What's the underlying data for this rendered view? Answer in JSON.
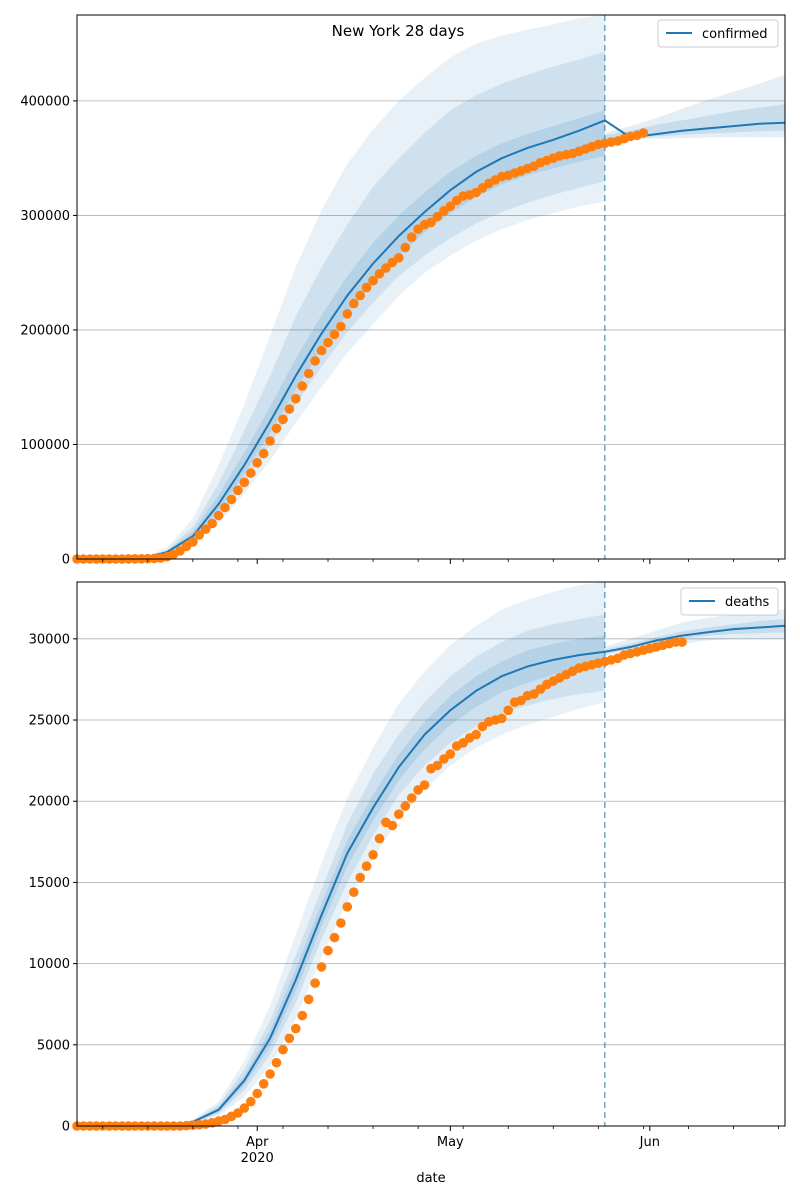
{
  "figure": {
    "title": "New York 28 days",
    "xlabel": "date",
    "x_ticks": [
      {
        "date": "2020-04-01",
        "label": "Apr"
      },
      {
        "date": "2020-05-01",
        "label": "May"
      },
      {
        "date": "2020-06-01",
        "label": "Jun"
      }
    ],
    "x_year_label": "2020",
    "colors": {
      "model": "#1f77b4",
      "observed": "#ff7f0e",
      "band": "#1f77b4",
      "grid": "#b0b0b0",
      "axis": "#000000"
    }
  },
  "chart_data": [
    {
      "type": "line",
      "panel": "top",
      "title": "New York 28 days",
      "legend": {
        "entries": [
          "confirmed"
        ],
        "placement": "top-right"
      },
      "xlim": [
        "2020-03-04",
        "2020-06-22"
      ],
      "ylim": [
        0,
        475000
      ],
      "y_ticks": [
        0,
        100000,
        200000,
        300000,
        400000
      ],
      "y_tick_labels": [
        "0",
        "100000",
        "200000",
        "300000",
        "400000"
      ],
      "grid": "horizontal",
      "forecast_start": "2020-05-25",
      "model_line": {
        "name": "confirmed",
        "x": [
          "2020-03-04",
          "2020-03-14",
          "2020-03-18",
          "2020-03-22",
          "2020-03-26",
          "2020-03-30",
          "2020-04-03",
          "2020-04-07",
          "2020-04-11",
          "2020-04-15",
          "2020-04-19",
          "2020-04-23",
          "2020-04-27",
          "2020-05-01",
          "2020-05-05",
          "2020-05-09",
          "2020-05-13",
          "2020-05-17",
          "2020-05-21",
          "2020-05-25",
          "2020-05-29",
          "2020-06-02",
          "2020-06-06",
          "2020-06-10",
          "2020-06-14",
          "2020-06-18",
          "2020-06-22"
        ],
        "y": [
          0,
          300,
          6000,
          20000,
          48000,
          82000,
          120000,
          160000,
          197000,
          230000,
          258000,
          282000,
          303000,
          322000,
          338000,
          350000,
          359000,
          366000,
          374000,
          383000,
          368000,
          371000,
          374000,
          376000,
          378000,
          380000,
          381000
        ]
      },
      "bands": [
        {
          "level": "outer",
          "x": [
            "2020-03-14",
            "2020-03-18",
            "2020-03-22",
            "2020-03-26",
            "2020-03-30",
            "2020-04-03",
            "2020-04-07",
            "2020-04-11",
            "2020-04-15",
            "2020-04-19",
            "2020-04-23",
            "2020-04-27",
            "2020-05-01",
            "2020-05-05",
            "2020-05-09",
            "2020-05-13",
            "2020-05-17",
            "2020-05-21",
            "2020-05-25"
          ],
          "lower": [
            200,
            4000,
            13000,
            31000,
            57000,
            86000,
            119000,
            150000,
            180000,
            205000,
            230000,
            250000,
            265000,
            278000,
            288000,
            296000,
            302000,
            308000,
            312000
          ],
          "upper": [
            400,
            10000,
            35000,
            82000,
            135000,
            195000,
            255000,
            305000,
            345000,
            375000,
            400000,
            420000,
            438000,
            450000,
            457000,
            462000,
            467000,
            472000,
            475000
          ]
        },
        {
          "level": "middle",
          "x": [
            "2020-03-14",
            "2020-03-18",
            "2020-03-22",
            "2020-03-26",
            "2020-03-30",
            "2020-04-03",
            "2020-04-07",
            "2020-04-11",
            "2020-04-15",
            "2020-04-19",
            "2020-04-23",
            "2020-04-27",
            "2020-05-01",
            "2020-05-05",
            "2020-05-09",
            "2020-05-13",
            "2020-05-17",
            "2020-05-21",
            "2020-05-25"
          ],
          "lower": [
            250,
            5000,
            15000,
            37000,
            66000,
            100000,
            135000,
            168000,
            198000,
            224000,
            247000,
            265000,
            280000,
            293000,
            303000,
            311000,
            318000,
            324000,
            330000
          ],
          "upper": [
            350,
            8000,
            28000,
            66000,
            112000,
            160000,
            212000,
            255000,
            292000,
            325000,
            350000,
            372000,
            392000,
            405000,
            415000,
            423000,
            430000,
            436000,
            443000
          ]
        },
        {
          "level": "inner",
          "x": [
            "2020-03-14",
            "2020-03-18",
            "2020-03-22",
            "2020-03-26",
            "2020-03-30",
            "2020-04-03",
            "2020-04-07",
            "2020-04-11",
            "2020-04-15",
            "2020-04-19",
            "2020-04-23",
            "2020-04-27",
            "2020-05-01",
            "2020-05-05",
            "2020-05-09",
            "2020-05-13",
            "2020-05-17",
            "2020-05-21",
            "2020-05-25"
          ],
          "lower": [
            270,
            5500,
            17000,
            42000,
            74000,
            110000,
            148000,
            183000,
            214000,
            241000,
            265000,
            285000,
            302000,
            316000,
            327000,
            335000,
            341000,
            347000,
            352000
          ],
          "upper": [
            330,
            7000,
            24000,
            56000,
            93000,
            133000,
            175000,
            213000,
            247000,
            276000,
            300000,
            320000,
            338000,
            352000,
            363000,
            371000,
            378000,
            385000,
            392000
          ]
        },
        {
          "level": "forecast-outer",
          "x": [
            "2020-05-25",
            "2020-05-29",
            "2020-06-02",
            "2020-06-06",
            "2020-06-10",
            "2020-06-14",
            "2020-06-18",
            "2020-06-22"
          ],
          "lower": [
            365000,
            366000,
            367000,
            367500,
            368000,
            368000,
            368000,
            368000
          ],
          "upper": [
            372000,
            378000,
            385000,
            393000,
            401000,
            408000,
            415000,
            423000
          ]
        },
        {
          "level": "forecast-inner",
          "x": [
            "2020-05-25",
            "2020-05-29",
            "2020-06-02",
            "2020-06-06",
            "2020-06-10",
            "2020-06-14",
            "2020-06-18",
            "2020-06-22"
          ],
          "lower": [
            366000,
            367500,
            369000,
            370500,
            371500,
            372500,
            373500,
            374000
          ],
          "upper": [
            370000,
            374000,
            379000,
            383000,
            387000,
            391000,
            394000,
            397000
          ]
        }
      ],
      "observed": {
        "start": "2020-03-01",
        "y": [
          0,
          0,
          0,
          0,
          0,
          0,
          0,
          0,
          0,
          0,
          0,
          100,
          150,
          200,
          300,
          500,
          900,
          2000,
          4000,
          7000,
          11000,
          15000,
          21000,
          26000,
          31000,
          38000,
          45000,
          52000,
          60000,
          67000,
          75000,
          84000,
          92000,
          103000,
          114000,
          122000,
          131000,
          140000,
          151000,
          162000,
          173000,
          182000,
          189000,
          196000,
          203000,
          214000,
          223000,
          230000,
          237000,
          243000,
          249000,
          254000,
          259000,
          263000,
          272000,
          281000,
          288000,
          292000,
          294000,
          299000,
          304000,
          308000,
          313000,
          317000,
          318000,
          320000,
          324000,
          328000,
          331000,
          334000,
          335000,
          337000,
          339000,
          341000,
          343000,
          346000,
          348000,
          350000,
          352000,
          353000,
          354000,
          356000,
          358000,
          360000,
          362000,
          363000,
          364000,
          365000,
          367000,
          369000,
          370000,
          372000
        ]
      }
    },
    {
      "type": "line",
      "panel": "bottom",
      "legend": {
        "entries": [
          "deaths"
        ],
        "placement": "top-right"
      },
      "xlim": [
        "2020-03-04",
        "2020-06-22"
      ],
      "ylim": [
        0,
        33500
      ],
      "y_ticks": [
        0,
        5000,
        10000,
        15000,
        20000,
        25000,
        30000
      ],
      "y_tick_labels": [
        "0",
        "5000",
        "10000",
        "15000",
        "20000",
        "25000",
        "30000"
      ],
      "grid": "horizontal",
      "forecast_start": "2020-05-25",
      "model_line": {
        "name": "deaths",
        "x": [
          "2020-03-04",
          "2020-03-18",
          "2020-03-22",
          "2020-03-26",
          "2020-03-30",
          "2020-04-03",
          "2020-04-07",
          "2020-04-11",
          "2020-04-15",
          "2020-04-19",
          "2020-04-23",
          "2020-04-27",
          "2020-05-01",
          "2020-05-05",
          "2020-05-09",
          "2020-05-13",
          "2020-05-17",
          "2020-05-21",
          "2020-05-25",
          "2020-05-29",
          "2020-06-02",
          "2020-06-06",
          "2020-06-10",
          "2020-06-14",
          "2020-06-18",
          "2020-06-22"
        ],
        "y": [
          0,
          0,
          250,
          1000,
          2800,
          5400,
          9000,
          13000,
          16800,
          19600,
          22100,
          24100,
          25600,
          26800,
          27700,
          28300,
          28700,
          29000,
          29200,
          29500,
          29900,
          30200,
          30400,
          30600,
          30700,
          30800
        ]
      },
      "bands": [
        {
          "level": "outer",
          "x": [
            "2020-03-18",
            "2020-03-22",
            "2020-03-26",
            "2020-03-30",
            "2020-04-03",
            "2020-04-07",
            "2020-04-11",
            "2020-04-15",
            "2020-04-19",
            "2020-04-23",
            "2020-04-27",
            "2020-05-01",
            "2020-05-05",
            "2020-05-09",
            "2020-05-13",
            "2020-05-17",
            "2020-05-21",
            "2020-05-25"
          ],
          "lower": [
            0,
            150,
            600,
            1800,
            3700,
            6600,
            10400,
            13800,
            16500,
            18900,
            20700,
            22200,
            23300,
            24100,
            24700,
            25200,
            25700,
            26100
          ],
          "upper": [
            0,
            400,
            1500,
            4000,
            7400,
            11800,
            16200,
            20200,
            23300,
            26000,
            28000,
            29600,
            30800,
            31800,
            32400,
            32900,
            33300,
            33500
          ]
        },
        {
          "level": "middle",
          "x": [
            "2020-03-18",
            "2020-03-22",
            "2020-03-26",
            "2020-03-30",
            "2020-04-03",
            "2020-04-07",
            "2020-04-11",
            "2020-04-15",
            "2020-04-19",
            "2020-04-23",
            "2020-04-27",
            "2020-05-01",
            "2020-05-05",
            "2020-05-09",
            "2020-05-13",
            "2020-05-17",
            "2020-05-21",
            "2020-05-25"
          ],
          "lower": [
            0,
            180,
            750,
            2200,
            4400,
            7600,
            11500,
            15000,
            17900,
            20400,
            22200,
            23600,
            24600,
            25400,
            25900,
            26300,
            26600,
            26800
          ],
          "upper": [
            0,
            330,
            1300,
            3500,
            6500,
            10500,
            14600,
            18600,
            21700,
            24100,
            26100,
            27700,
            28900,
            29800,
            30500,
            30900,
            31200,
            31500
          ]
        },
        {
          "level": "inner",
          "x": [
            "2020-03-18",
            "2020-03-22",
            "2020-03-26",
            "2020-03-30",
            "2020-04-03",
            "2020-04-07",
            "2020-04-11",
            "2020-04-15",
            "2020-04-19",
            "2020-04-23",
            "2020-04-27",
            "2020-05-01",
            "2020-05-05",
            "2020-05-09",
            "2020-05-13",
            "2020-05-17",
            "2020-05-21",
            "2020-05-25"
          ],
          "lower": [
            0,
            210,
            850,
            2500,
            4900,
            8300,
            12300,
            16000,
            18800,
            21300,
            23200,
            24700,
            25800,
            26700,
            27300,
            27800,
            28200,
            28500
          ],
          "upper": [
            0,
            290,
            1150,
            3100,
            5900,
            9700,
            13700,
            17600,
            20400,
            22900,
            24900,
            26500,
            27700,
            28600,
            29300,
            29700,
            30000,
            30200
          ]
        },
        {
          "level": "forecast-outer",
          "x": [
            "2020-05-25",
            "2020-05-29",
            "2020-06-02",
            "2020-06-06",
            "2020-06-10",
            "2020-06-14",
            "2020-06-18",
            "2020-06-22"
          ],
          "lower": [
            29000,
            29200,
            29500,
            29700,
            29900,
            30000,
            30000,
            30000
          ],
          "upper": [
            29500,
            30000,
            30500,
            31000,
            31300,
            31500,
            31700,
            31800
          ]
        },
        {
          "level": "forecast-inner",
          "x": [
            "2020-05-25",
            "2020-05-29",
            "2020-06-02",
            "2020-06-06",
            "2020-06-10",
            "2020-06-14",
            "2020-06-18",
            "2020-06-22"
          ],
          "lower": [
            29100,
            29350,
            29700,
            30000,
            30200,
            30300,
            30350,
            30400
          ],
          "upper": [
            29350,
            29700,
            30100,
            30450,
            30700,
            30900,
            31100,
            31200
          ]
        }
      ],
      "observed": {
        "start": "2020-03-01",
        "y": [
          0,
          0,
          0,
          0,
          0,
          0,
          0,
          0,
          0,
          0,
          0,
          0,
          0,
          0,
          0,
          0,
          0,
          0,
          0,
          0,
          20,
          50,
          80,
          120,
          200,
          300,
          400,
          600,
          800,
          1100,
          1500,
          2000,
          2600,
          3200,
          3900,
          4700,
          5400,
          6000,
          6800,
          7800,
          8800,
          9800,
          10800,
          11600,
          12500,
          13500,
          14400,
          15300,
          16000,
          16700,
          17700,
          18700,
          18500,
          19200,
          19700,
          20200,
          20700,
          21000,
          22000,
          22200,
          22600,
          22900,
          23400,
          23600,
          23900,
          24100,
          24600,
          24900,
          25000,
          25100,
          25600,
          26100,
          26200,
          26500,
          26600,
          26900,
          27200,
          27400,
          27600,
          27800,
          28000,
          28200,
          28300,
          28400,
          28500,
          28600,
          28700,
          28800,
          29000,
          29100,
          29200,
          29300,
          29400,
          29500,
          29600,
          29700,
          29800,
          29800
        ]
      }
    }
  ]
}
